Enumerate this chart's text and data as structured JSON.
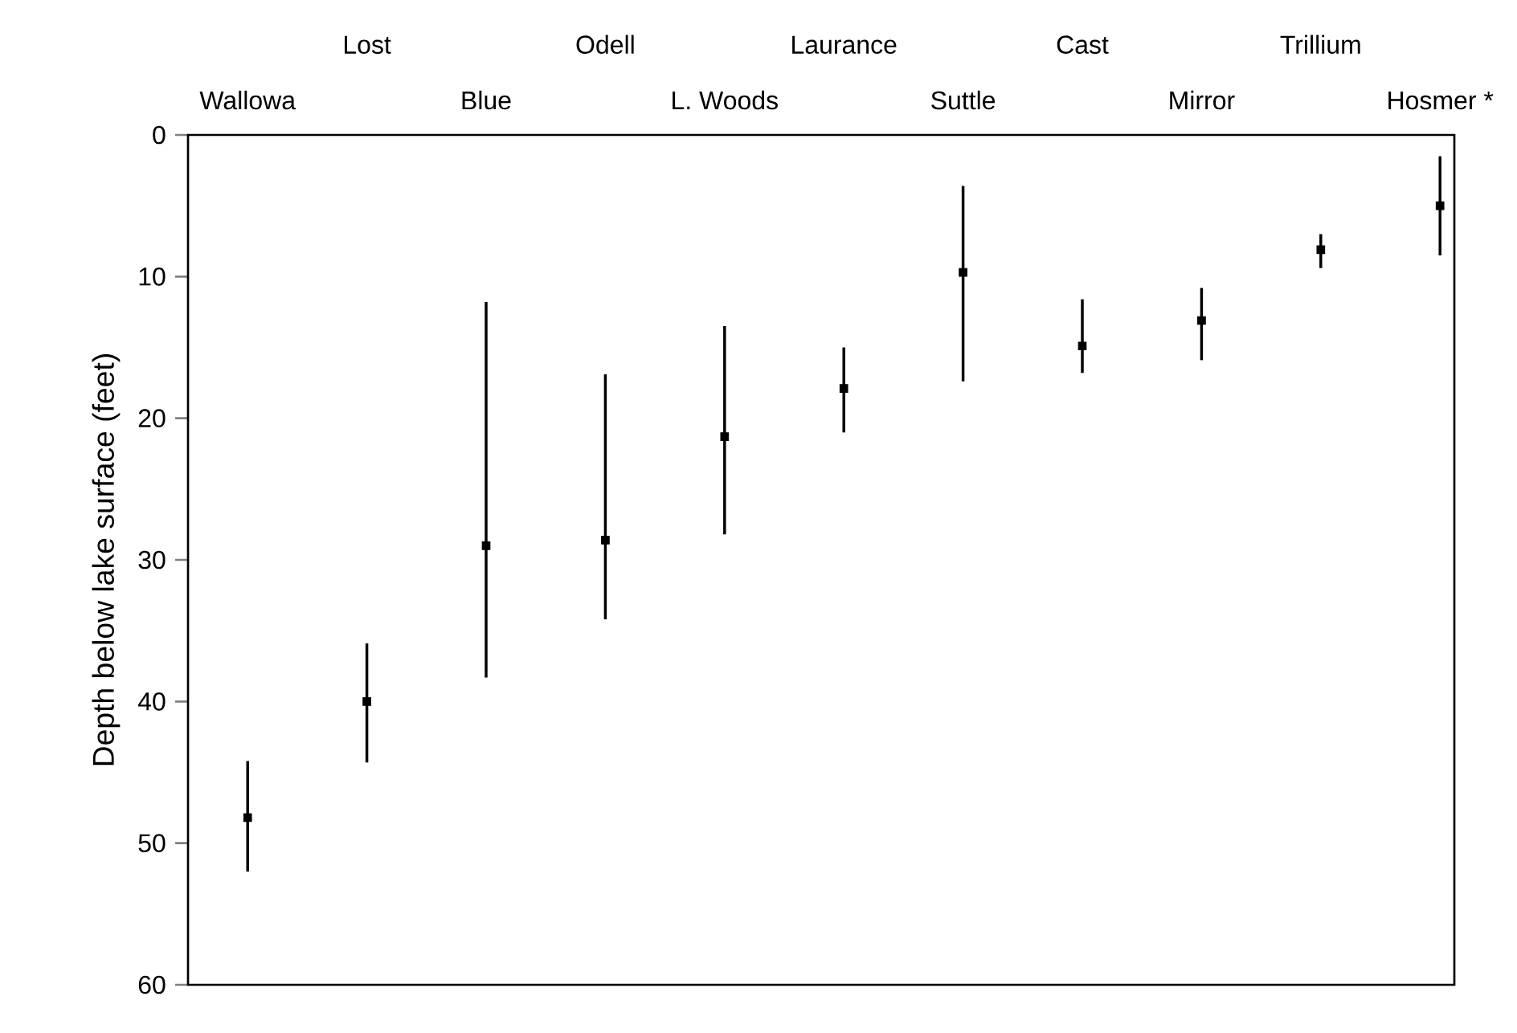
{
  "chart_data": {
    "type": "scatter",
    "ylabel": "Depth below lake surface (feet)",
    "categories": [
      "Wallowa",
      "Lost",
      "Blue",
      "Odell",
      "L. Woods",
      "Laurance",
      "Suttle",
      "Cast",
      "Mirror",
      "Trillium",
      "Hosmer *"
    ],
    "values": [
      48.2,
      40.0,
      29.0,
      28.6,
      21.3,
      17.9,
      9.7,
      14.9,
      13.1,
      8.1,
      5.0
    ],
    "errors": [
      [
        44.2,
        52.0
      ],
      [
        35.9,
        44.3
      ],
      [
        11.8,
        38.3
      ],
      [
        16.9,
        34.2
      ],
      [
        13.5,
        28.2
      ],
      [
        15.0,
        21.0
      ],
      [
        3.6,
        17.4
      ],
      [
        11.6,
        16.8
      ],
      [
        10.8,
        15.9
      ],
      [
        7.0,
        9.4
      ],
      [
        1.5,
        8.5
      ]
    ],
    "color": "#000000",
    "marker": "square",
    "ylim": [
      60,
      0
    ],
    "yticks": [
      0,
      10,
      20,
      30,
      40,
      50,
      60
    ]
  }
}
